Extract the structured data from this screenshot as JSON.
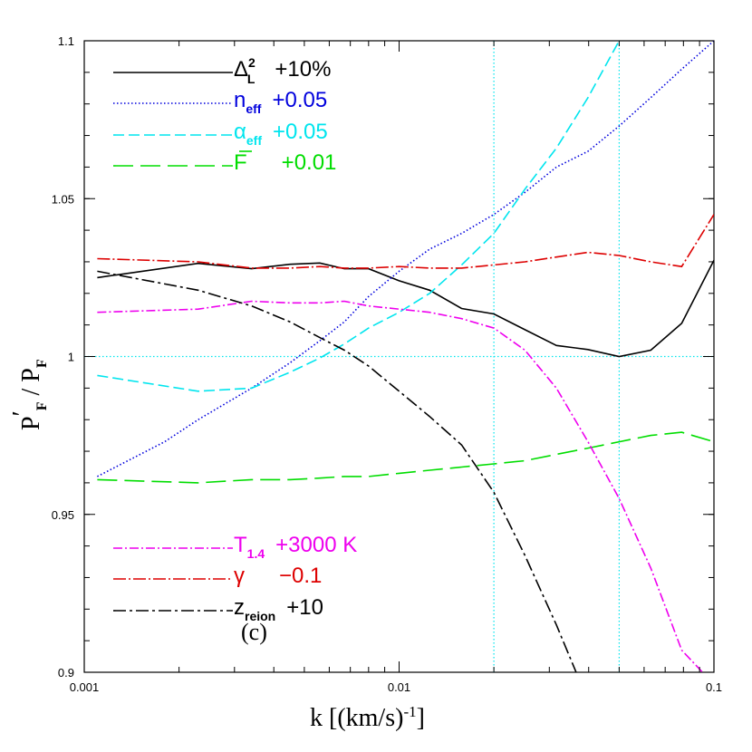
{
  "chart_data": {
    "type": "line",
    "xscale": "log",
    "xlim": [
      0.001,
      0.1
    ],
    "ylim": [
      0.9,
      1.1
    ],
    "xlabel": {
      "text": "k [(km/s)",
      "sup": "-1",
      "tail": "]"
    },
    "ylabel": {
      "p1": "P",
      "sup": "′",
      "sub1": "F",
      "mid": " / P",
      "sub2": "F"
    },
    "x_ticks": [
      {
        "value": 0.001,
        "label": "0.001"
      },
      {
        "value": 0.01,
        "label": "0.01"
      },
      {
        "value": 0.1,
        "label": "0.1"
      }
    ],
    "y_ticks": [
      {
        "value": 0.9,
        "label": "0.9"
      },
      {
        "value": 0.95,
        "label": "0.95"
      },
      {
        "value": 1.0,
        "label": "1"
      },
      {
        "value": 1.05,
        "label": "1.05"
      },
      {
        "value": 1.1,
        "label": "1.1"
      }
    ],
    "reference_lines": {
      "vertical": [
        0.02,
        0.05
      ],
      "horizontal": [
        1.0
      ],
      "color": "#00e5ee"
    },
    "panel_label": "(c)",
    "series": [
      {
        "sym": "Δ",
        "sub": "L",
        "sup": "2",
        "value": "+10%",
        "color": "#000000",
        "dash": "",
        "x": [
          0.0011,
          0.0023,
          0.0034,
          0.0045,
          0.0056,
          0.0067,
          0.008,
          0.01,
          0.0125,
          0.0158,
          0.02,
          0.0251,
          0.0316,
          0.0398,
          0.05,
          0.063,
          0.079,
          0.1
        ],
        "y": [
          1.025,
          1.0295,
          1.0278,
          1.0292,
          1.0296,
          1.0278,
          1.0278,
          1.024,
          1.021,
          1.0152,
          1.0135,
          1.0085,
          1.0035,
          1.0022,
          1.0,
          1.002,
          1.0105,
          1.0305
        ]
      },
      {
        "sym": "n",
        "sub": "eff",
        "sup": "",
        "value": "+0.05",
        "color": "#0000dd",
        "dash": "1.5,2.5",
        "x": [
          0.0011,
          0.0018,
          0.0023,
          0.0034,
          0.0045,
          0.0056,
          0.0067,
          0.008,
          0.01,
          0.0125,
          0.0158,
          0.02,
          0.0251,
          0.0316,
          0.0398,
          0.05,
          0.063,
          0.079,
          0.1
        ],
        "y": [
          0.962,
          0.973,
          0.98,
          0.99,
          0.998,
          1.005,
          1.011,
          1.019,
          1.027,
          1.034,
          1.039,
          1.045,
          1.052,
          1.06,
          1.065,
          1.073,
          1.082,
          1.091,
          1.1
        ]
      },
      {
        "sym": "α",
        "sub": "eff",
        "sup": "",
        "value": "+0.05",
        "color": "#00e5ee",
        "dash": "12,5",
        "x": [
          0.0011,
          0.0023,
          0.0034,
          0.0045,
          0.0056,
          0.0067,
          0.008,
          0.01,
          0.0125,
          0.0158,
          0.02,
          0.0251,
          0.0316,
          0.0398,
          0.05
        ],
        "y": [
          0.994,
          0.989,
          0.99,
          0.995,
          0.9995,
          1.004,
          1.009,
          1.014,
          1.02,
          1.029,
          1.039,
          1.053,
          1.066,
          1.082,
          1.1
        ]
      },
      {
        "sym": "F",
        "sub": "",
        "sup": "",
        "bar": true,
        "value": "+0.01",
        "color": "#00dd00",
        "dash": "22,8",
        "x": [
          0.0011,
          0.0023,
          0.0034,
          0.0045,
          0.0056,
          0.0067,
          0.008,
          0.01,
          0.0125,
          0.0158,
          0.02,
          0.0251,
          0.0316,
          0.0398,
          0.05,
          0.063,
          0.079,
          0.1
        ],
        "y": [
          0.961,
          0.96,
          0.961,
          0.961,
          0.9615,
          0.962,
          0.962,
          0.963,
          0.964,
          0.965,
          0.966,
          0.967,
          0.969,
          0.971,
          0.973,
          0.975,
          0.976,
          0.973
        ]
      },
      {
        "sym": "T",
        "sub": "1.4",
        "sup": "",
        "value": "+3000 K",
        "color": "#ee00ee",
        "dash": "10,3,2,3",
        "x": [
          0.0011,
          0.0023,
          0.0034,
          0.0045,
          0.0056,
          0.0067,
          0.008,
          0.01,
          0.0125,
          0.0158,
          0.02,
          0.0251,
          0.0316,
          0.0398,
          0.05,
          0.063,
          0.079,
          0.092
        ],
        "y": [
          1.014,
          1.015,
          1.0175,
          1.017,
          1.017,
          1.0175,
          1.016,
          1.015,
          1.014,
          1.012,
          1.009,
          1.002,
          0.99,
          0.973,
          0.955,
          0.933,
          0.907,
          0.9
        ]
      },
      {
        "sym": "γ",
        "sub": "",
        "sup": "",
        "value": "−0.1",
        "color": "#dd0000",
        "dash": "14,3,2,3",
        "x": [
          0.0011,
          0.0023,
          0.0034,
          0.0045,
          0.0056,
          0.0067,
          0.008,
          0.01,
          0.0125,
          0.0158,
          0.02,
          0.0251,
          0.0316,
          0.0398,
          0.05,
          0.063,
          0.079,
          0.1
        ],
        "y": [
          1.031,
          1.03,
          1.028,
          1.028,
          1.0285,
          1.028,
          1.028,
          1.0285,
          1.028,
          1.028,
          1.029,
          1.03,
          1.0315,
          1.033,
          1.032,
          1.03,
          1.0285,
          1.045
        ]
      },
      {
        "sym": "z",
        "sub": "reion",
        "sup": "",
        "value": "+10",
        "color": "#000000",
        "dash": "14,4,3,4",
        "x": [
          0.0011,
          0.0023,
          0.0034,
          0.0045,
          0.0056,
          0.0067,
          0.008,
          0.01,
          0.0125,
          0.0158,
          0.02,
          0.0251,
          0.0316,
          0.0365
        ],
        "y": [
          1.027,
          1.021,
          1.016,
          1.011,
          1.006,
          1.002,
          0.997,
          0.989,
          0.981,
          0.972,
          0.957,
          0.937,
          0.915,
          0.9
        ]
      }
    ]
  }
}
